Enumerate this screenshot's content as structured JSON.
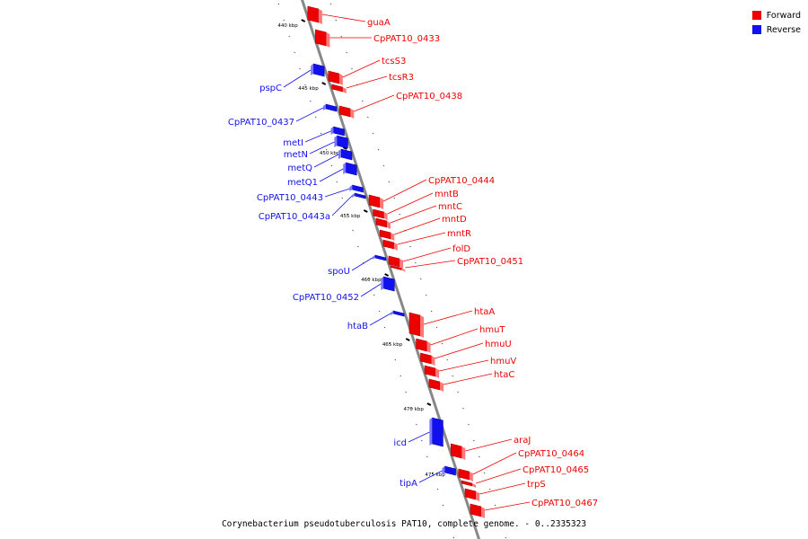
{
  "caption": "Corynebacterium pseudotuberculosis PAT10, complete genome. - 0..2335323",
  "legend": [
    {
      "label": "Forward",
      "color": "#ee0000"
    },
    {
      "label": "Reverse",
      "color": "#1111ee"
    }
  ],
  "colors": {
    "forward": "#ee0000",
    "reverse": "#1111ee",
    "axis": "#888888"
  },
  "scale_labels": [
    {
      "kbp": 440,
      "label": "440 kbp"
    },
    {
      "kbp": 445,
      "label": "445 kbp"
    },
    {
      "kbp": 450,
      "label": "450 kbp"
    },
    {
      "kbp": 455,
      "label": "455 kbp"
    },
    {
      "kbp": 460,
      "label": "460 kbp"
    },
    {
      "kbp": 465,
      "label": "465 kbp"
    },
    {
      "kbp": 470,
      "label": "470 kbp"
    },
    {
      "kbp": 475,
      "label": "475 kbp"
    }
  ],
  "genes": [
    {
      "name": "guaA",
      "strand": "forward"
    },
    {
      "name": "CpPAT10_0433",
      "strand": "forward"
    },
    {
      "name": "tcsS3",
      "strand": "forward"
    },
    {
      "name": "tcsR3",
      "strand": "forward"
    },
    {
      "name": "CpPAT10_0438",
      "strand": "forward"
    },
    {
      "name": "pspC",
      "strand": "reverse"
    },
    {
      "name": "CpPAT10_0437",
      "strand": "reverse"
    },
    {
      "name": "metI",
      "strand": "reverse"
    },
    {
      "name": "metN",
      "strand": "reverse"
    },
    {
      "name": "metQ",
      "strand": "reverse"
    },
    {
      "name": "metQ1",
      "strand": "reverse"
    },
    {
      "name": "CpPAT10_0443",
      "strand": "reverse"
    },
    {
      "name": "CpPAT10_0443a",
      "strand": "reverse"
    },
    {
      "name": "CpPAT10_0444",
      "strand": "forward"
    },
    {
      "name": "mntB",
      "strand": "forward"
    },
    {
      "name": "mntC",
      "strand": "forward"
    },
    {
      "name": "mntD",
      "strand": "forward"
    },
    {
      "name": "mntR",
      "strand": "forward"
    },
    {
      "name": "folD",
      "strand": "forward"
    },
    {
      "name": "CpPAT10_0451",
      "strand": "forward"
    },
    {
      "name": "spoU",
      "strand": "reverse"
    },
    {
      "name": "CpPAT10_0452",
      "strand": "reverse"
    },
    {
      "name": "htaB",
      "strand": "reverse"
    },
    {
      "name": "htaA",
      "strand": "forward"
    },
    {
      "name": "hmuT",
      "strand": "forward"
    },
    {
      "name": "hmuU",
      "strand": "forward"
    },
    {
      "name": "hmuV",
      "strand": "forward"
    },
    {
      "name": "htaC",
      "strand": "forward"
    },
    {
      "name": "icd",
      "strand": "reverse"
    },
    {
      "name": "tipA",
      "strand": "reverse"
    },
    {
      "name": "araJ",
      "strand": "forward"
    },
    {
      "name": "CpPAT10_0464",
      "strand": "forward"
    },
    {
      "name": "CpPAT10_0465",
      "strand": "forward"
    },
    {
      "name": "trpS",
      "strand": "forward"
    },
    {
      "name": "CpPAT10_0467",
      "strand": "forward"
    }
  ]
}
